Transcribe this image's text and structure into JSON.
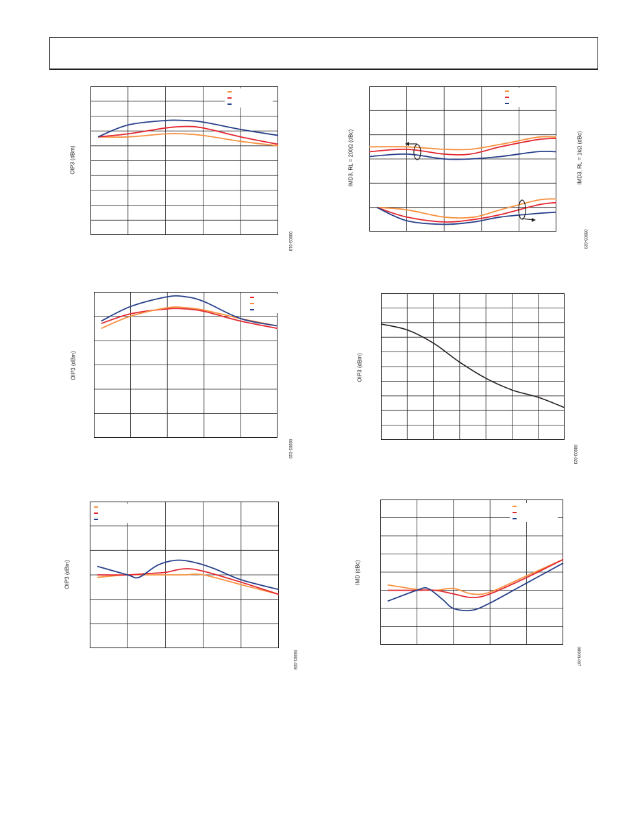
{
  "colors": {
    "orange": "#f7903e",
    "red": "#e3262f",
    "blue": "#263f8a",
    "black": "#231f20",
    "grid": "#231f20"
  },
  "chart_data": [
    {
      "type": "line",
      "ylabel": "OIP3 (dBm)",
      "fig_id": "08903-018",
      "grid": true,
      "legend": "top-right",
      "xlim": [
        0,
        5
      ],
      "ylim": [
        0,
        10
      ],
      "series": [
        {
          "color": "orange",
          "x": [
            0.2,
            1,
            2,
            2.5,
            3,
            4,
            5
          ],
          "y": [
            6.6,
            6.6,
            6.8,
            6.8,
            6.7,
            6.3,
            6.0
          ]
        },
        {
          "color": "red",
          "x": [
            0.2,
            1,
            2,
            2.5,
            3,
            4,
            5
          ],
          "y": [
            6.6,
            6.8,
            7.2,
            7.3,
            7.2,
            6.6,
            6.1
          ]
        },
        {
          "color": "blue",
          "x": [
            0.2,
            1,
            2,
            2.5,
            3,
            4,
            5
          ],
          "y": [
            6.6,
            7.4,
            7.7,
            7.7,
            7.6,
            7.1,
            6.7
          ]
        }
      ]
    },
    {
      "type": "line",
      "ylabel_left": "IMD3, RL = 200Ω (dBc)",
      "ylabel_right": "IMD3, RL = 1kΩ (dBc)",
      "fig_id": "08903-020",
      "grid": true,
      "legend": "top-right",
      "xlim": [
        0,
        5
      ],
      "ylim": [
        0,
        6
      ],
      "series": [
        {
          "color": "orange",
          "x": [
            0,
            1,
            2,
            2.7,
            3.5,
            4.5,
            5
          ],
          "y": [
            3.5,
            3.5,
            3.4,
            3.4,
            3.6,
            3.9,
            3.9
          ]
        },
        {
          "color": "red",
          "x": [
            0,
            1,
            2,
            2.7,
            3.5,
            4.5,
            5
          ],
          "y": [
            3.3,
            3.4,
            3.2,
            3.2,
            3.5,
            3.8,
            3.85
          ]
        },
        {
          "color": "blue",
          "x": [
            0,
            1,
            2,
            2.7,
            3.5,
            4.5,
            5
          ],
          "y": [
            3.1,
            3.2,
            3.0,
            3.0,
            3.1,
            3.3,
            3.3
          ]
        },
        {
          "color": "orange",
          "x": [
            0.2,
            1,
            2,
            2.8,
            3.5,
            4.5,
            5
          ],
          "y": [
            1.0,
            0.9,
            0.6,
            0.6,
            0.9,
            1.3,
            1.35
          ]
        },
        {
          "color": "red",
          "x": [
            0.2,
            1,
            2,
            2.8,
            3.5,
            4.5,
            5
          ],
          "y": [
            1.0,
            0.6,
            0.4,
            0.5,
            0.7,
            1.1,
            1.2
          ]
        },
        {
          "color": "blue",
          "x": [
            0.2,
            1,
            2,
            2.8,
            3.5,
            4.5,
            5
          ],
          "y": [
            1.0,
            0.45,
            0.3,
            0.4,
            0.6,
            0.75,
            0.8
          ]
        }
      ]
    },
    {
      "type": "line",
      "ylabel": "OIP3 (dBm)",
      "fig_id": "08903-019",
      "grid": true,
      "legend": "top-right",
      "xlim": [
        0,
        5
      ],
      "ylim": [
        0,
        6
      ],
      "series": [
        {
          "color": "red",
          "x": [
            0.2,
            1,
            2,
            2.5,
            3,
            4,
            5
          ],
          "y": [
            4.7,
            5.1,
            5.3,
            5.3,
            5.2,
            4.8,
            4.5
          ]
        },
        {
          "color": "orange",
          "x": [
            0.2,
            1,
            2,
            2.5,
            3,
            4,
            5
          ],
          "y": [
            4.5,
            5.0,
            5.35,
            5.35,
            5.25,
            4.9,
            4.6
          ]
        },
        {
          "color": "blue",
          "x": [
            0.2,
            1,
            2,
            2.5,
            3,
            4,
            5
          ],
          "y": [
            4.8,
            5.4,
            5.8,
            5.8,
            5.6,
            4.9,
            4.6
          ]
        }
      ]
    },
    {
      "type": "line",
      "ylabel": "OIP3 (dBm)",
      "fig_id": "08903-023",
      "grid": true,
      "xlim": [
        0,
        7
      ],
      "ylim": [
        0,
        10
      ],
      "series": [
        {
          "color": "black",
          "x": [
            0,
            1,
            2,
            3,
            4,
            5,
            6,
            7
          ],
          "y": [
            7.9,
            7.5,
            6.6,
            5.3,
            4.2,
            3.4,
            2.9,
            2.2
          ]
        }
      ]
    },
    {
      "type": "line",
      "ylabel": "OIP3 (dBm)",
      "fig_id": "08903-008",
      "grid": true,
      "legend": "top-left",
      "xlim": [
        0,
        5
      ],
      "ylim": [
        0,
        6
      ],
      "series": [
        {
          "color": "orange",
          "x": [
            0.2,
            1,
            1.5,
            2,
            2.5,
            3,
            4,
            5
          ],
          "y": [
            2.9,
            3.0,
            3.0,
            3.0,
            3.0,
            3.0,
            2.6,
            2.2
          ]
        },
        {
          "color": "red",
          "x": [
            0.2,
            1,
            1.5,
            2,
            2.5,
            3,
            4,
            5
          ],
          "y": [
            3.0,
            3.0,
            3.05,
            3.1,
            3.25,
            3.15,
            2.7,
            2.2
          ]
        },
        {
          "color": "blue",
          "x": [
            0.2,
            1,
            1.3,
            1.8,
            2.3,
            2.8,
            3.3,
            4,
            5
          ],
          "y": [
            3.35,
            3.0,
            2.9,
            3.4,
            3.6,
            3.5,
            3.25,
            2.8,
            2.4
          ]
        }
      ]
    },
    {
      "type": "line",
      "ylabel": "IMD (dBc)",
      "fig_id": "08903-007",
      "grid": true,
      "legend": "top-right",
      "xlim": [
        0,
        5
      ],
      "ylim": [
        0,
        8
      ],
      "series": [
        {
          "color": "orange",
          "x": [
            0.2,
            1,
            1.5,
            2,
            2.5,
            3,
            4,
            5
          ],
          "y": [
            3.3,
            3.05,
            3.0,
            3.1,
            2.8,
            2.9,
            3.8,
            4.7
          ]
        },
        {
          "color": "red",
          "x": [
            0.2,
            1,
            1.5,
            2,
            2.5,
            3,
            4,
            5
          ],
          "y": [
            3.0,
            3.0,
            3.0,
            2.8,
            2.6,
            2.8,
            3.7,
            4.7
          ]
        },
        {
          "color": "blue",
          "x": [
            0.2,
            1,
            1.3,
            1.7,
            2,
            2.5,
            3,
            4,
            5
          ],
          "y": [
            2.4,
            3.0,
            3.1,
            2.5,
            2.0,
            1.9,
            2.3,
            3.4,
            4.5
          ]
        }
      ]
    }
  ]
}
